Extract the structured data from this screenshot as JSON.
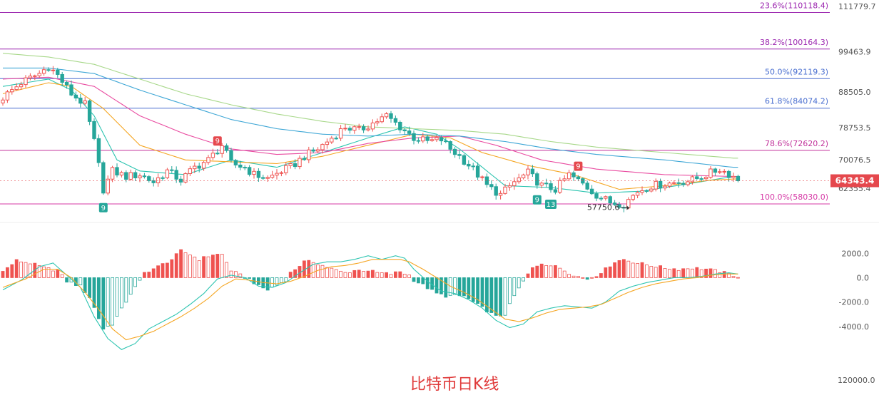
{
  "title": "比特币日K线",
  "chart_data": {
    "type": "candlestick",
    "price_axis": {
      "min": 53000,
      "max": 113500,
      "ticks": [
        "111779.7",
        "99463.9",
        "88505.0",
        "78753.5",
        "70076.5",
        "62355.4"
      ],
      "tick_values": [
        111779.7,
        99463.9,
        88505.0,
        78753.5,
        70076.5,
        62355.4
      ]
    },
    "current_price": {
      "label": "64343.4",
      "value": 64343.4,
      "color": "#e5484d"
    },
    "low_marker": {
      "label": "57750.6",
      "value": 57750.6
    },
    "fib_levels": [
      {
        "label": "23.6%(110118.4)",
        "value": 110118.4,
        "color": "#9c27b0"
      },
      {
        "label": "38.2%(100164.3)",
        "value": 100164.3,
        "color": "#9c27b0"
      },
      {
        "label": "50.0%(92119.3)",
        "value": 92119.3,
        "color": "#4a6fd0"
      },
      {
        "label": "61.8%(84074.2)",
        "value": 84074.2,
        "color": "#4a6fd0"
      },
      {
        "label": "78.6%(72620.2)",
        "value": 72620.2,
        "color": "#c2339b"
      },
      {
        "label": "100.0%(58030.0)",
        "value": 58030.0,
        "color": "#d63aa6"
      }
    ],
    "td_markers": [
      {
        "label": "9",
        "index": 47,
        "kind": "sell"
      },
      {
        "label": "9",
        "index": 22,
        "kind": "buy"
      },
      {
        "label": "9",
        "index": 117,
        "kind": "buy"
      },
      {
        "label": "13",
        "index": 120,
        "kind": "buy"
      },
      {
        "label": "9",
        "index": 126,
        "kind": "sell"
      }
    ],
    "macd_axis": {
      "min": -6000,
      "max": 2600,
      "ticks": [
        "2000.0",
        "0.0",
        "-2000.0",
        "-4000.0"
      ],
      "tick_values": [
        2000,
        0,
        -2000,
        -4000
      ]
    },
    "volume_axis_label": "120000.0",
    "price_keyframes": [
      [
        0,
        87000
      ],
      [
        4,
        91000
      ],
      [
        8,
        93500
      ],
      [
        10,
        95500
      ],
      [
        12,
        93000
      ],
      [
        15,
        88000
      ],
      [
        18,
        85000
      ],
      [
        20,
        75000
      ],
      [
        22,
        62000
      ],
      [
        24,
        67000
      ],
      [
        27,
        65500
      ],
      [
        30,
        66000
      ],
      [
        33,
        64000
      ],
      [
        36,
        67000
      ],
      [
        39,
        64500
      ],
      [
        42,
        68000
      ],
      [
        45,
        70000
      ],
      [
        48,
        74000
      ],
      [
        50,
        69000
      ],
      [
        53,
        68000
      ],
      [
        55,
        66000
      ],
      [
        58,
        65000
      ],
      [
        61,
        67000
      ],
      [
        63,
        68000
      ],
      [
        66,
        71000
      ],
      [
        69,
        73000
      ],
      [
        72,
        76000
      ],
      [
        75,
        79000
      ],
      [
        78,
        78000
      ],
      [
        81,
        80000
      ],
      [
        84,
        82000
      ],
      [
        87,
        79000
      ],
      [
        90,
        76000
      ],
      [
        93,
        75000
      ],
      [
        96,
        75500
      ],
      [
        98,
        73000
      ],
      [
        100,
        71000
      ],
      [
        103,
        67500
      ],
      [
        106,
        63000
      ],
      [
        109,
        60500
      ],
      [
        112,
        64000
      ],
      [
        115,
        66500
      ],
      [
        118,
        63000
      ],
      [
        121,
        62000
      ],
      [
        124,
        66000
      ],
      [
        127,
        63500
      ],
      [
        130,
        60500
      ],
      [
        133,
        58500
      ],
      [
        136,
        58000
      ],
      [
        139,
        61500
      ],
      [
        142,
        63000
      ],
      [
        145,
        63500
      ],
      [
        148,
        64000
      ],
      [
        151,
        64500
      ],
      [
        154,
        66000
      ],
      [
        157,
        67500
      ],
      [
        160,
        65500
      ],
      [
        161,
        64300
      ]
    ],
    "ma_series": [
      {
        "name": "",
        "color": "#2cc4b0",
        "keyframes": [
          [
            0,
            90000
          ],
          [
            10,
            92000
          ],
          [
            15,
            89000
          ],
          [
            20,
            82000
          ],
          [
            25,
            70000
          ],
          [
            30,
            67000
          ],
          [
            40,
            66000
          ],
          [
            50,
            70000
          ],
          [
            60,
            68000
          ],
          [
            70,
            72000
          ],
          [
            80,
            76000
          ],
          [
            88,
            79000
          ],
          [
            95,
            77000
          ],
          [
            100,
            73000
          ],
          [
            110,
            63000
          ],
          [
            120,
            62500
          ],
          [
            130,
            61000
          ],
          [
            140,
            61500
          ],
          [
            150,
            63500
          ],
          [
            160,
            65500
          ]
        ]
      },
      {
        "name": "",
        "color": "#f5a623",
        "keyframes": [
          [
            0,
            88000
          ],
          [
            10,
            91000
          ],
          [
            15,
            90000
          ],
          [
            22,
            84000
          ],
          [
            30,
            74000
          ],
          [
            40,
            70000
          ],
          [
            50,
            69500
          ],
          [
            60,
            69000
          ],
          [
            70,
            71000
          ],
          [
            80,
            74000
          ],
          [
            90,
            77000
          ],
          [
            98,
            76000
          ],
          [
            105,
            72000
          ],
          [
            115,
            68500
          ],
          [
            125,
            66000
          ],
          [
            135,
            62000
          ],
          [
            145,
            63000
          ],
          [
            155,
            64500
          ],
          [
            160,
            64800
          ]
        ]
      },
      {
        "name": "",
        "color": "#e94ba0",
        "keyframes": [
          [
            0,
            92000
          ],
          [
            10,
            92500
          ],
          [
            20,
            90000
          ],
          [
            30,
            82000
          ],
          [
            40,
            77000
          ],
          [
            50,
            73000
          ],
          [
            60,
            71500
          ],
          [
            70,
            72000
          ],
          [
            80,
            74500
          ],
          [
            90,
            76000
          ],
          [
            100,
            76500
          ],
          [
            108,
            74000
          ],
          [
            118,
            70000
          ],
          [
            130,
            67500
          ],
          [
            145,
            66000
          ],
          [
            160,
            65500
          ]
        ]
      },
      {
        "name": "",
        "color": "#3fa7d6",
        "keyframes": [
          [
            0,
            95000
          ],
          [
            10,
            95000
          ],
          [
            20,
            93500
          ],
          [
            30,
            89000
          ],
          [
            40,
            85000
          ],
          [
            50,
            81000
          ],
          [
            60,
            78500
          ],
          [
            70,
            77000
          ],
          [
            80,
            76500
          ],
          [
            90,
            77000
          ],
          [
            100,
            76500
          ],
          [
            110,
            75000
          ],
          [
            120,
            73000
          ],
          [
            130,
            71500
          ],
          [
            145,
            70000
          ],
          [
            160,
            68000
          ]
        ]
      },
      {
        "name": "",
        "color": "#a8d88a",
        "keyframes": [
          [
            0,
            99000
          ],
          [
            10,
            98000
          ],
          [
            20,
            96000
          ],
          [
            30,
            92000
          ],
          [
            40,
            88000
          ],
          [
            50,
            85000
          ],
          [
            60,
            82500
          ],
          [
            70,
            80500
          ],
          [
            80,
            79000
          ],
          [
            90,
            78500
          ],
          [
            100,
            78000
          ],
          [
            110,
            77000
          ],
          [
            120,
            75000
          ],
          [
            130,
            73500
          ],
          [
            145,
            72000
          ],
          [
            160,
            70500
          ]
        ]
      }
    ],
    "macd_hist_keyframes": [
      [
        0,
        500
      ],
      [
        3,
        1400
      ],
      [
        6,
        1200
      ],
      [
        9,
        800
      ],
      [
        12,
        600
      ],
      [
        14,
        -300
      ],
      [
        17,
        -700
      ],
      [
        19,
        -1600
      ],
      [
        22,
        -4200
      ],
      [
        24,
        -3800
      ],
      [
        26,
        -2600
      ],
      [
        28,
        -1300
      ],
      [
        30,
        -300
      ],
      [
        31,
        400
      ],
      [
        34,
        900
      ],
      [
        37,
        1500
      ],
      [
        39,
        2200
      ],
      [
        41,
        1900
      ],
      [
        43,
        1500
      ],
      [
        46,
        1900
      ],
      [
        48,
        1900
      ],
      [
        50,
        600
      ],
      [
        52,
        200
      ],
      [
        54,
        -100
      ],
      [
        56,
        -700
      ],
      [
        58,
        -1000
      ],
      [
        60,
        -600
      ],
      [
        62,
        -200
      ],
      [
        63,
        400
      ],
      [
        66,
        1300
      ],
      [
        68,
        1300
      ],
      [
        70,
        1000
      ],
      [
        73,
        600
      ],
      [
        75,
        400
      ],
      [
        77,
        600
      ],
      [
        80,
        600
      ],
      [
        82,
        400
      ],
      [
        85,
        300
      ],
      [
        87,
        500
      ],
      [
        89,
        200
      ],
      [
        90,
        -200
      ],
      [
        92,
        -600
      ],
      [
        95,
        -1300
      ],
      [
        97,
        -1500
      ],
      [
        99,
        -1500
      ],
      [
        101,
        -1500
      ],
      [
        103,
        -2000
      ],
      [
        106,
        -2700
      ],
      [
        108,
        -3200
      ],
      [
        110,
        -3000
      ],
      [
        112,
        -1500
      ],
      [
        114,
        -300
      ],
      [
        116,
        800
      ],
      [
        118,
        1200
      ],
      [
        120,
        1000
      ],
      [
        122,
        800
      ],
      [
        124,
        400
      ],
      [
        126,
        100
      ],
      [
        128,
        -100
      ],
      [
        130,
        200
      ],
      [
        132,
        700
      ],
      [
        134,
        1300
      ],
      [
        136,
        1500
      ],
      [
        139,
        1200
      ],
      [
        142,
        1000
      ],
      [
        145,
        800
      ],
      [
        148,
        700
      ],
      [
        151,
        800
      ],
      [
        154,
        700
      ],
      [
        157,
        500
      ],
      [
        159,
        300
      ],
      [
        161,
        100
      ]
    ],
    "dif_keyframes": [
      [
        0,
        -1000
      ],
      [
        4,
        -200
      ],
      [
        8,
        900
      ],
      [
        11,
        1200
      ],
      [
        14,
        200
      ],
      [
        17,
        -800
      ],
      [
        20,
        -3200
      ],
      [
        23,
        -5000
      ],
      [
        26,
        -5900
      ],
      [
        29,
        -5400
      ],
      [
        32,
        -4200
      ],
      [
        35,
        -3600
      ],
      [
        38,
        -3000
      ],
      [
        41,
        -2200
      ],
      [
        44,
        -1300
      ],
      [
        47,
        -100
      ],
      [
        50,
        200
      ],
      [
        53,
        0
      ],
      [
        56,
        -700
      ],
      [
        59,
        -800
      ],
      [
        62,
        -400
      ],
      [
        65,
        400
      ],
      [
        68,
        1100
      ],
      [
        71,
        1300
      ],
      [
        74,
        1300
      ],
      [
        77,
        1500
      ],
      [
        80,
        1800
      ],
      [
        83,
        1500
      ],
      [
        86,
        1800
      ],
      [
        88,
        1600
      ],
      [
        90,
        700
      ],
      [
        93,
        -300
      ],
      [
        96,
        -1100
      ],
      [
        99,
        -1300
      ],
      [
        102,
        -1800
      ],
      [
        105,
        -2500
      ],
      [
        108,
        -3500
      ],
      [
        111,
        -4100
      ],
      [
        114,
        -3800
      ],
      [
        117,
        -2800
      ],
      [
        120,
        -2500
      ],
      [
        123,
        -2300
      ],
      [
        126,
        -2400
      ],
      [
        129,
        -2500
      ],
      [
        132,
        -2000
      ],
      [
        135,
        -1100
      ],
      [
        138,
        -700
      ],
      [
        141,
        -400
      ],
      [
        144,
        -200
      ],
      [
        147,
        0
      ],
      [
        150,
        0
      ],
      [
        153,
        100
      ],
      [
        156,
        300
      ],
      [
        159,
        400
      ],
      [
        161,
        300
      ]
    ],
    "dea_keyframes": [
      [
        0,
        -800
      ],
      [
        5,
        -100
      ],
      [
        9,
        700
      ],
      [
        12,
        700
      ],
      [
        15,
        0
      ],
      [
        18,
        -1200
      ],
      [
        21,
        -2600
      ],
      [
        24,
        -4200
      ],
      [
        27,
        -5100
      ],
      [
        30,
        -4800
      ],
      [
        33,
        -4400
      ],
      [
        36,
        -3800
      ],
      [
        39,
        -3200
      ],
      [
        42,
        -2500
      ],
      [
        45,
        -1700
      ],
      [
        48,
        -700
      ],
      [
        51,
        -100
      ],
      [
        54,
        -200
      ],
      [
        57,
        -400
      ],
      [
        60,
        -500
      ],
      [
        63,
        -300
      ],
      [
        66,
        100
      ],
      [
        69,
        600
      ],
      [
        72,
        900
      ],
      [
        75,
        1000
      ],
      [
        78,
        1200
      ],
      [
        81,
        1500
      ],
      [
        84,
        1500
      ],
      [
        87,
        1500
      ],
      [
        89,
        1300
      ],
      [
        92,
        700
      ],
      [
        95,
        0
      ],
      [
        98,
        -700
      ],
      [
        101,
        -1200
      ],
      [
        104,
        -1800
      ],
      [
        107,
        -2600
      ],
      [
        110,
        -3400
      ],
      [
        113,
        -3600
      ],
      [
        116,
        -3300
      ],
      [
        119,
        -2900
      ],
      [
        122,
        -2600
      ],
      [
        125,
        -2500
      ],
      [
        128,
        -2400
      ],
      [
        131,
        -2200
      ],
      [
        134,
        -1700
      ],
      [
        137,
        -1200
      ],
      [
        140,
        -800
      ],
      [
        143,
        -500
      ],
      [
        146,
        -300
      ],
      [
        149,
        -100
      ],
      [
        152,
        0
      ],
      [
        155,
        200
      ],
      [
        158,
        300
      ],
      [
        161,
        300
      ]
    ]
  }
}
